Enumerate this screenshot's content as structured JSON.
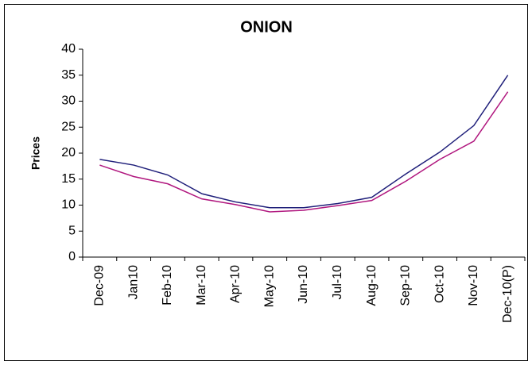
{
  "chart_data": {
    "type": "line",
    "title": "ONION",
    "y_label": "Prices",
    "categories": [
      "Dec-09",
      "Jan10",
      "Feb-10",
      "Mar-10",
      "Apr-10",
      "May-10",
      "Jun-10",
      "Jul-10",
      "Aug-10",
      "Sep-10",
      "Oct-10",
      "Nov-10",
      "Dec-10(P)"
    ],
    "series": [
      {
        "color": "#1f1f7a",
        "values": [
          18.8,
          17.7,
          15.8,
          12.2,
          10.6,
          9.5,
          9.5,
          10.3,
          11.5,
          16.0,
          20.2,
          25.3,
          35.0
        ]
      },
      {
        "color": "#b0167e",
        "values": [
          17.7,
          15.5,
          14.1,
          11.2,
          10.1,
          8.7,
          9.0,
          9.9,
          10.9,
          14.6,
          18.8,
          22.3,
          31.8
        ]
      }
    ],
    "ylim": [
      0,
      40
    ],
    "yticks": [
      0,
      5,
      10,
      15,
      20,
      25,
      30,
      35,
      40
    ],
    "grid": false
  }
}
